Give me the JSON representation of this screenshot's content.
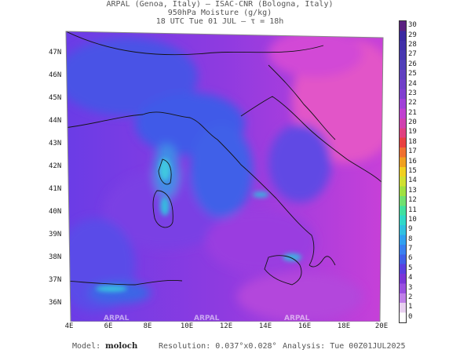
{
  "header": {
    "line1": "ARPAL (Genoa, Italy)  –  ISAC-CNR (Bologna, Italy)",
    "line2": "950hPa Moisture (g/kg)",
    "line3": "18 UTC Tue 01 JUL  –  τ = 18h"
  },
  "map": {
    "variable": "950hPa Moisture",
    "units": "g/kg",
    "lat_labels": [
      "47N",
      "46N",
      "45N",
      "44N",
      "43N",
      "42N",
      "41N",
      "40N",
      "39N",
      "38N",
      "37N",
      "36N"
    ],
    "lon_labels": [
      "4E",
      "6E",
      "8E",
      "10E",
      "12E",
      "14E",
      "16E",
      "18E",
      "20E"
    ],
    "watermarks": [
      "ARPAL",
      "ARPAL",
      "ARPAL"
    ],
    "colors": {
      "background_field": "#8a2be2",
      "high_moisture": "#e040c0",
      "low_moisture": "#3a55e0",
      "coast": "#1a1a1a"
    }
  },
  "colorbar": {
    "labels": [
      "30",
      "29",
      "28",
      "27",
      "26",
      "25",
      "24",
      "23",
      "22",
      "21",
      "20",
      "19",
      "18",
      "17",
      "16",
      "15",
      "14",
      "13",
      "12",
      "11",
      "10",
      "9",
      "8",
      "7",
      "6",
      "5",
      "4",
      "3",
      "2",
      "1",
      "0"
    ]
  },
  "footer": {
    "model_label": "Model:",
    "model_value": "moloch",
    "resolution_label": "Resolution:",
    "resolution_value": "0.037°x0.028°",
    "analysis_label": "Analysis:",
    "analysis_value": "Tue 00Z01JUL2025"
  }
}
